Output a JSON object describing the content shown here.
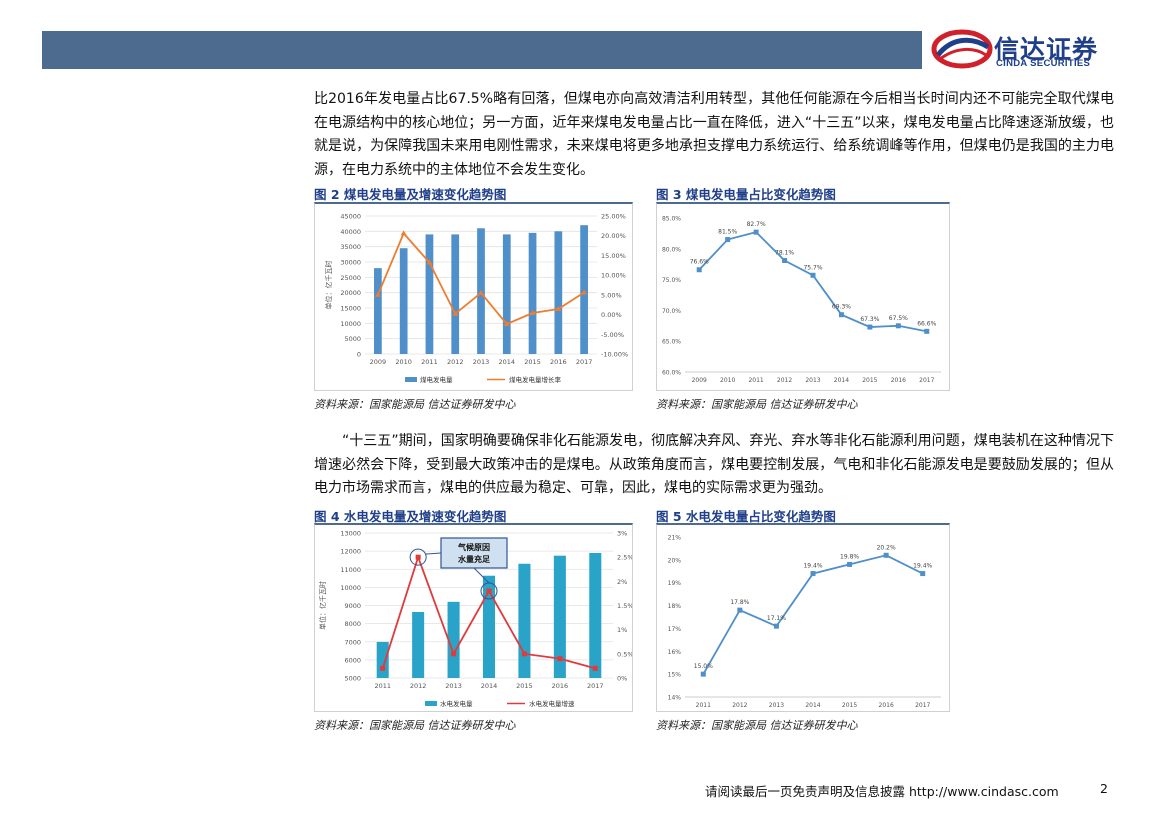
{
  "header": {
    "band_color": "#4c6b8f"
  },
  "logo": {
    "cn": "信达证券",
    "en": "CINDA SECURITIES",
    "icon": "cinda-swirl-logo"
  },
  "para1": "比2016年发电量占比67.5%略有回落，但煤电亦向高效清洁利用转型，其他任何能源在今后相当长时间内还不可能完全取代煤电在电源结构中的核心地位；另一方面，近年来煤电发电量占比一直在降低，进入“十三五”以来，煤电发电量占比降速逐渐放缓，也就是说，为保障我国未来用电刚性需求，未来煤电将更多地承担支撑电力系统运行、给系统调峰等作用，但煤电仍是我国的主力电源，在电力系统中的主体地位不会发生变化。",
  "para2": "“十三五”期间，国家明确要确保非化石能源发电，彻底解决弃风、弃光、弃水等非化石能源利用问题，煤电装机在这种情况下增速必然会下降，受到最大政策冲击的是煤电。从政策角度而言，煤电要控制发展，气电和非化石能源发电是要鼓励发展的；但从电力市场需求而言，煤电的供应最为稳定、可靠，因此，煤电的实际需求更为强劲。",
  "fig2": {
    "title": "图 2  煤电发电量及增速变化趋势图",
    "source": "资料来源：国家能源局  信达证券研发中心"
  },
  "fig3": {
    "title": "图 3  煤电发电量占比变化趋势图",
    "source": "资料来源：国家能源局  信达证券研发中心"
  },
  "fig4": {
    "title": "图 4  水电发电量及增速变化趋势图",
    "source": "资料来源：国家能源局  信达证券研发中心"
  },
  "fig5": {
    "title": "图 5  水电发电量占比变化趋势图",
    "source": "资料来源：国家能源局  信达证券研发中心"
  },
  "footer": {
    "text": "请阅读最后一页免责声明及信息披露 http://www.cindasc.com",
    "page": "2"
  },
  "chart_data": [
    {
      "id": "fig2",
      "type": "bar",
      "categories": [
        "2009",
        "2010",
        "2011",
        "2012",
        "2013",
        "2014",
        "2015",
        "2016",
        "2017"
      ],
      "series": [
        {
          "name": "煤电发电量",
          "type": "bar",
          "values": [
            28000,
            34500,
            39000,
            39000,
            41000,
            39000,
            39500,
            40000,
            42000
          ],
          "color": "#4f8fca"
        },
        {
          "name": "煤电发电量增长率",
          "type": "line",
          "axis": "right",
          "values": [
            5.0,
            20.6,
            13.2,
            0.2,
            5.5,
            -2.4,
            0.4,
            1.4,
            5.6
          ],
          "color": "#ed7d31"
        }
      ],
      "ylabel": "单位：亿千瓦时",
      "ylim": [
        0,
        45000
      ],
      "yticks": [
        "45000",
        "40000",
        "35000",
        "30000",
        "25000",
        "20000",
        "15000",
        "10000",
        "5000",
        "0"
      ],
      "y2lim": [
        -10,
        25
      ],
      "y2ticks": [
        "25.00%",
        "20.00%",
        "15.00%",
        "10.00%",
        "5.00%",
        "0.00%",
        "-5.00%",
        "-10.00%"
      ],
      "grid": true,
      "legend": "bottom"
    },
    {
      "id": "fig3",
      "type": "line",
      "categories": [
        "2009",
        "2010",
        "2011",
        "2012",
        "2013",
        "2014",
        "2015",
        "2016",
        "2017"
      ],
      "series": [
        {
          "name": "",
          "values": [
            76.6,
            81.5,
            82.7,
            78.1,
            75.7,
            69.3,
            67.3,
            67.5,
            66.6
          ],
          "labels": [
            "76.6%",
            "81.5%",
            "82.7%",
            "78.1%",
            "75.7%",
            "69.3%",
            "67.3%",
            "67.5%",
            "66.6%"
          ],
          "color": "#4f8fca"
        }
      ],
      "ylim": [
        60,
        85
      ],
      "yticks": [
        "85.0%",
        "80.0%",
        "75.0%",
        "70.0%",
        "65.0%",
        "60.0%"
      ],
      "grid": false
    },
    {
      "id": "fig4",
      "type": "bar",
      "categories": [
        "2011",
        "2012",
        "2013",
        "2014",
        "2015",
        "2016",
        "2017"
      ],
      "series": [
        {
          "name": "水电发电量",
          "type": "bar",
          "values": [
            6989,
            8641,
            9203,
            10643,
            11303,
            11748,
            11898
          ],
          "color": "#2aa3c9"
        },
        {
          "name": "水电发电量增速",
          "type": "line",
          "axis": "right",
          "values": [
            0.2,
            2.5,
            0.5,
            1.8,
            0.5,
            0.4,
            0.2
          ],
          "color": "#e23a3a"
        }
      ],
      "ylabel": "单位：亿千瓦时",
      "ylim": [
        5000,
        13000
      ],
      "yticks": [
        "13000",
        "12000",
        "11000",
        "10000",
        "9000",
        "8000",
        "7000",
        "6000",
        "5000"
      ],
      "y2lim": [
        0,
        3
      ],
      "y2ticks": [
        "3%",
        "2.5%",
        "2%",
        "1.5%",
        "1%",
        "0.5%",
        "0%"
      ],
      "annotation": "气候原因水量充足",
      "grid": true,
      "legend": "bottom"
    },
    {
      "id": "fig5",
      "type": "line",
      "categories": [
        "2011",
        "2012",
        "2013",
        "2014",
        "2015",
        "2016",
        "2017"
      ],
      "series": [
        {
          "name": "",
          "values": [
            15.0,
            17.8,
            17.1,
            19.4,
            19.8,
            20.2,
            19.4
          ],
          "labels": [
            "15.0%",
            "17.8%",
            "17.1%",
            "19.4%",
            "19.8%",
            "20.2%",
            "19.4%"
          ],
          "color": "#4f8fca"
        }
      ],
      "ylim": [
        14,
        21
      ],
      "yticks": [
        "21%",
        "20%",
        "19%",
        "18%",
        "17%",
        "16%",
        "15%",
        "14%"
      ],
      "grid": false
    }
  ]
}
